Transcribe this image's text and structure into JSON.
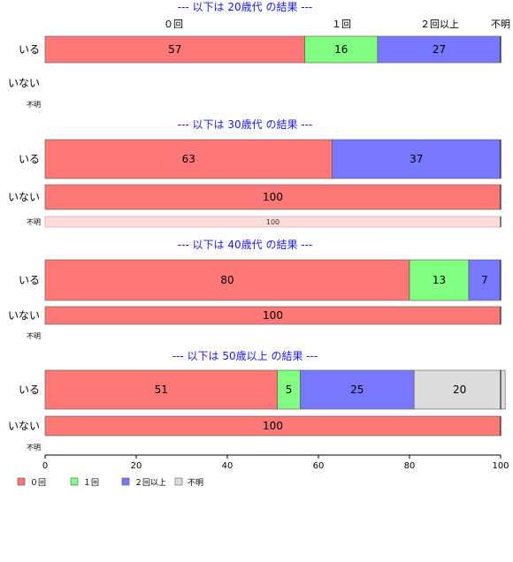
{
  "chart_data": {
    "type": "bar",
    "orientation": "horizontal",
    "stacked": true,
    "percent": true,
    "categories": [
      "０回",
      "１回",
      "２回以上",
      "不明"
    ],
    "colors": [
      "#ff7878",
      "#80ff80",
      "#7878ff",
      "#dcdcdc"
    ],
    "xlim": [
      0,
      100
    ],
    "xticks": [
      "0",
      "20",
      "40",
      "60",
      "80",
      "100"
    ],
    "legend": {
      "position": "bottom-left",
      "labels": [
        "０回",
        "１回",
        "２回以上",
        "不明"
      ]
    },
    "panels": [
      {
        "title": "--- 以下は 20歳代 の結果 ---",
        "rows": [
          {
            "label": "いる",
            "values": [
              57,
              16,
              27,
              0
            ]
          },
          {
            "label": "いない",
            "values": []
          },
          {
            "label": "不明",
            "values": []
          }
        ]
      },
      {
        "title": "--- 以下は 30歳代 の結果 ---",
        "rows": [
          {
            "label": "いる",
            "values": [
              63,
              0,
              37,
              0
            ]
          },
          {
            "label": "いない",
            "values": [
              100,
              0,
              0,
              0
            ]
          },
          {
            "label": "不明",
            "values": [
              100,
              0,
              0,
              0
            ]
          }
        ]
      },
      {
        "title": "--- 以下は 40歳代 の結果 ---",
        "rows": [
          {
            "label": "いる",
            "values": [
              80,
              13,
              7,
              0
            ]
          },
          {
            "label": "いない",
            "values": [
              100,
              0,
              0,
              0
            ]
          },
          {
            "label": "不明",
            "values": []
          }
        ]
      },
      {
        "title": "--- 以下は 50歳以上 の結果 ---",
        "rows": [
          {
            "label": "いる",
            "values": [
              51,
              5,
              25,
              20
            ]
          },
          {
            "label": "いない",
            "values": [
              100,
              0,
              0,
              0
            ]
          },
          {
            "label": "不明",
            "values": []
          }
        ]
      }
    ]
  }
}
